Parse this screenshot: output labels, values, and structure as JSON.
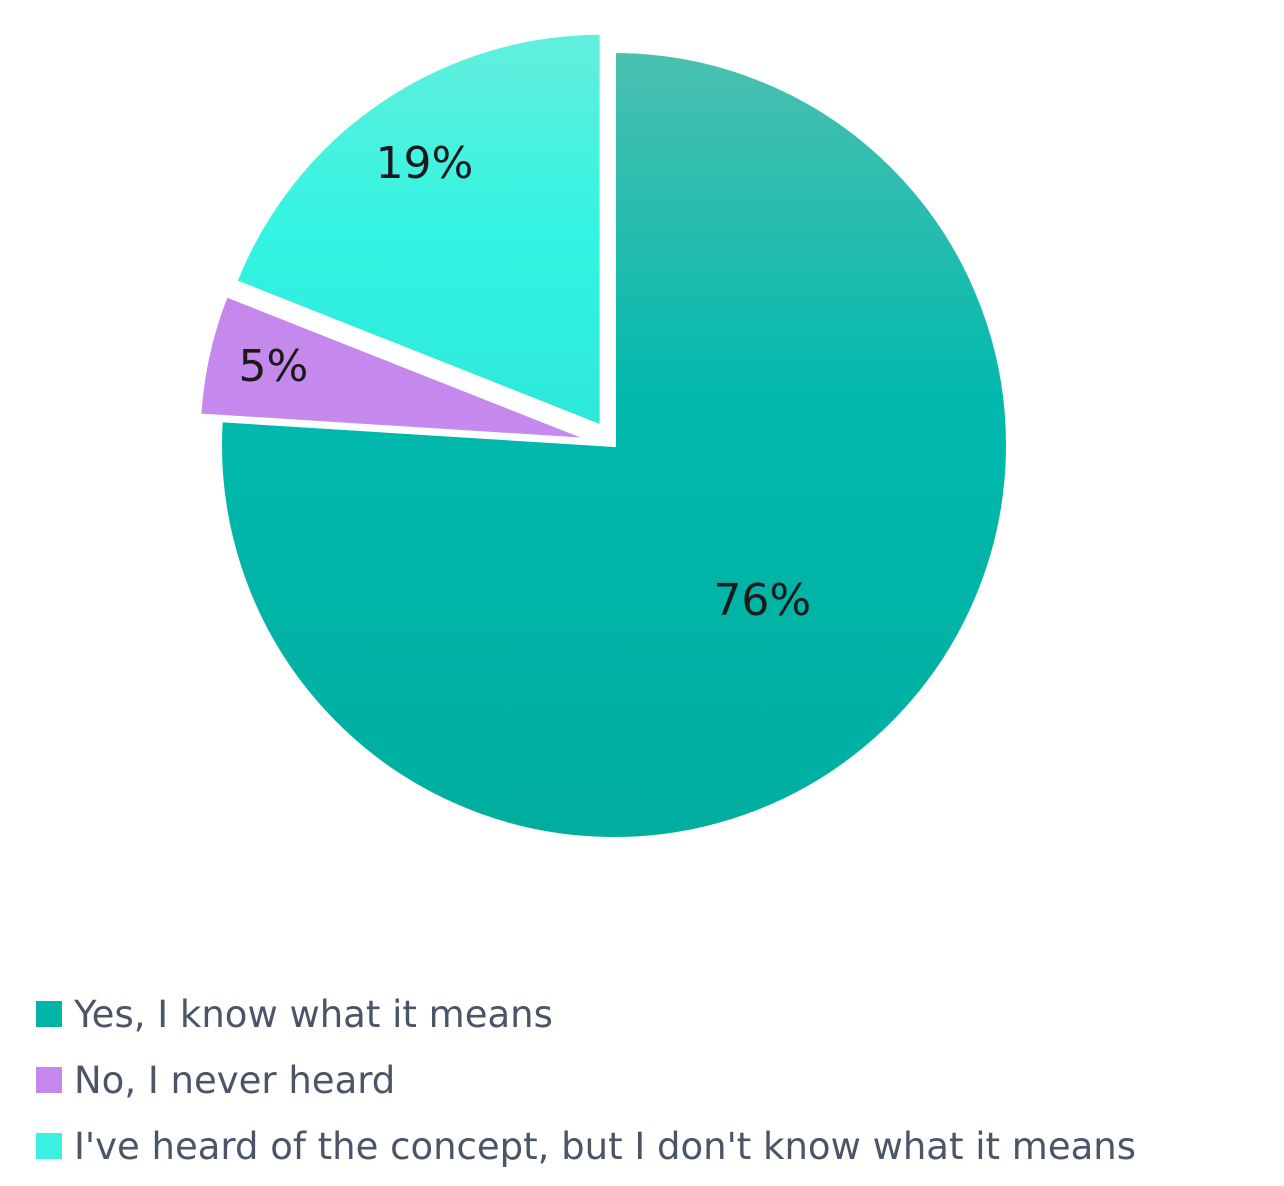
{
  "chart_data": {
    "type": "pie",
    "categories": [
      "Yes, I know what it means",
      "No, I never heard",
      "I've heard of the concept, but I don't know what it means"
    ],
    "values": [
      76,
      5,
      19
    ],
    "labels": [
      "76%",
      "5%",
      "19%"
    ],
    "colors": [
      "#00b5a8",
      "#c488ec",
      "#3af0e0"
    ],
    "legend_position": "bottom-left"
  }
}
